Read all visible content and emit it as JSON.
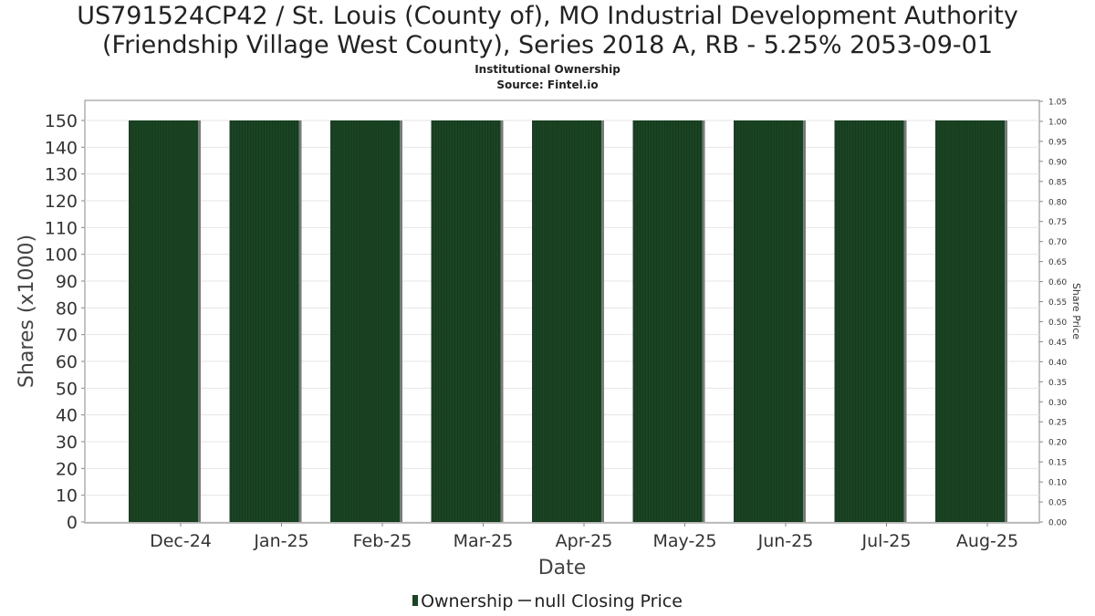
{
  "title_line1": "US791524CP42 / St. Louis (County of), MO Industrial Development Authority",
  "title_line2": "(Friendship Village West County), Series 2018 A, RB - 5.25% 2053-09-01",
  "subtitle": "Institutional Ownership",
  "source": "Source: Fintel.io",
  "legend": {
    "bar_label": "Ownership",
    "line_label": "null Closing Price"
  },
  "colors": {
    "bar": "#1a4423",
    "bar_shadow": "#7a7a7a",
    "grid": "#e4e4e4",
    "axis": "#888888"
  },
  "chart_data": {
    "type": "bar",
    "title": "US791524CP42 / St. Louis (County of), MO Industrial Development Authority (Friendship Village West County), Series 2018 A, RB - 5.25% 2053-09-01",
    "xlabel": "Date",
    "ylabel": "Shares (x1000)",
    "y2label": "Share Price",
    "categories": [
      "Dec-24",
      "Jan-25",
      "Feb-25",
      "Mar-25",
      "Apr-25",
      "May-25",
      "Jun-25",
      "Jul-25",
      "Aug-25"
    ],
    "series": [
      {
        "name": "Ownership",
        "values": [
          150,
          150,
          150,
          150,
          150,
          150,
          150,
          150,
          150
        ]
      }
    ],
    "ylim": [
      0,
      150
    ],
    "yticks": [
      0,
      10,
      20,
      30,
      40,
      50,
      60,
      70,
      80,
      90,
      100,
      110,
      120,
      130,
      140,
      150
    ],
    "y2lim": [
      0,
      1.05
    ],
    "y2ticks": [
      "0.00",
      "0.05",
      "0.10",
      "0.15",
      "0.20",
      "0.25",
      "0.30",
      "0.35",
      "0.40",
      "0.45",
      "0.50",
      "0.55",
      "0.60",
      "0.65",
      "0.70",
      "0.75",
      "0.80",
      "0.85",
      "0.90",
      "0.95",
      "1.00",
      "1.05"
    ],
    "grid": true,
    "legend_position": "bottom"
  }
}
